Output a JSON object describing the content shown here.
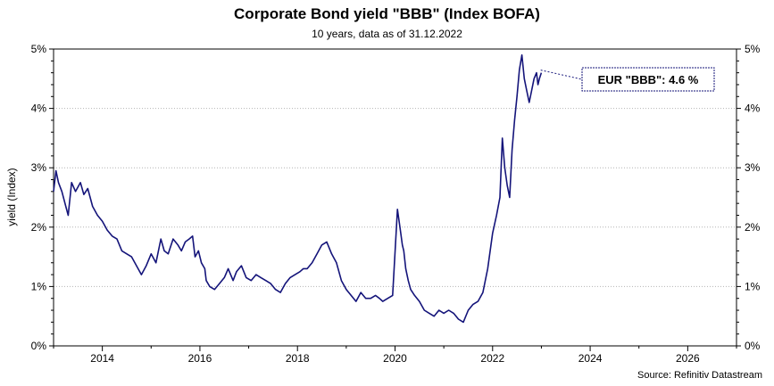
{
  "header": {
    "title": "Corporate Bond yield \"BBB\" (Index BOFA)",
    "subtitle": "10 years, data as of 31.12.2022"
  },
  "footer": {
    "source": "Source: Refinitiv Datastream"
  },
  "colors": {
    "series": "#14147a",
    "grid": "#b4b4b4",
    "axis": "#000000",
    "annotation_border": "#14147a"
  },
  "chart_data": {
    "type": "line",
    "ylabel": "yield (Index)",
    "xlabel": "",
    "xlim": [
      2013.0,
      2027.0
    ],
    "ylim": [
      0,
      5
    ],
    "x_ticks": [
      2014,
      2016,
      2018,
      2020,
      2022,
      2024,
      2026
    ],
    "y_ticks": [
      "0%",
      "1%",
      "2%",
      "3%",
      "4%",
      "5%"
    ],
    "grid": "horizontal dotted",
    "right_axis": true,
    "annotation": {
      "text": "EUR \"BBB\": 4.6 %",
      "x": 2022.95,
      "y": 4.6
    },
    "series": [
      {
        "color": "#14147a",
        "x": [
          2013.0,
          2013.05,
          2013.1,
          2013.17,
          2013.25,
          2013.3,
          2013.37,
          2013.45,
          2013.55,
          2013.62,
          2013.7,
          2013.8,
          2013.9,
          2014.0,
          2014.1,
          2014.2,
          2014.3,
          2014.4,
          2014.5,
          2014.6,
          2014.7,
          2014.8,
          2014.9,
          2015.0,
          2015.1,
          2015.2,
          2015.27,
          2015.35,
          2015.45,
          2015.55,
          2015.62,
          2015.7,
          2015.78,
          2015.85,
          2015.9,
          2015.97,
          2016.03,
          2016.1,
          2016.13,
          2016.2,
          2016.3,
          2016.4,
          2016.5,
          2016.58,
          2016.68,
          2016.75,
          2016.85,
          2016.95,
          2017.05,
          2017.15,
          2017.25,
          2017.35,
          2017.45,
          2017.55,
          2017.65,
          2017.75,
          2017.85,
          2017.95,
          2018.05,
          2018.12,
          2018.2,
          2018.3,
          2018.4,
          2018.5,
          2018.6,
          2018.7,
          2018.8,
          2018.9,
          2019.0,
          2019.1,
          2019.2,
          2019.3,
          2019.4,
          2019.5,
          2019.6,
          2019.68,
          2019.75,
          2019.85,
          2019.95,
          2020.05,
          2020.1,
          2020.15,
          2020.18,
          2020.22,
          2020.27,
          2020.32,
          2020.4,
          2020.5,
          2020.6,
          2020.7,
          2020.8,
          2020.9,
          2021.0,
          2021.1,
          2021.2,
          2021.3,
          2021.4,
          2021.5,
          2021.6,
          2021.7,
          2021.8,
          2021.9,
          2022.0,
          2022.08,
          2022.15,
          2022.2,
          2022.25,
          2022.3,
          2022.35,
          2022.4,
          2022.45,
          2022.5,
          2022.55,
          2022.6,
          2022.65,
          2022.7,
          2022.75,
          2022.8,
          2022.85,
          2022.9,
          2022.93,
          2022.96,
          2023.0
        ],
        "y": [
          2.6,
          2.95,
          2.75,
          2.6,
          2.35,
          2.2,
          2.75,
          2.6,
          2.75,
          2.55,
          2.65,
          2.35,
          2.2,
          2.1,
          1.95,
          1.85,
          1.8,
          1.6,
          1.55,
          1.5,
          1.35,
          1.2,
          1.35,
          1.55,
          1.4,
          1.8,
          1.6,
          1.55,
          1.8,
          1.7,
          1.6,
          1.75,
          1.8,
          1.85,
          1.5,
          1.6,
          1.4,
          1.3,
          1.1,
          1.0,
          0.95,
          1.05,
          1.15,
          1.3,
          1.1,
          1.25,
          1.35,
          1.15,
          1.1,
          1.2,
          1.15,
          1.1,
          1.05,
          0.95,
          0.9,
          1.05,
          1.15,
          1.2,
          1.25,
          1.3,
          1.3,
          1.4,
          1.55,
          1.7,
          1.75,
          1.55,
          1.4,
          1.1,
          0.95,
          0.85,
          0.75,
          0.9,
          0.8,
          0.8,
          0.85,
          0.8,
          0.75,
          0.8,
          0.85,
          2.3,
          2.0,
          1.7,
          1.6,
          1.3,
          1.1,
          0.95,
          0.85,
          0.75,
          0.6,
          0.55,
          0.5,
          0.6,
          0.55,
          0.6,
          0.55,
          0.45,
          0.4,
          0.6,
          0.7,
          0.75,
          0.9,
          1.3,
          1.9,
          2.2,
          2.5,
          3.5,
          3.0,
          2.7,
          2.5,
          3.3,
          3.8,
          4.2,
          4.65,
          4.9,
          4.5,
          4.3,
          4.1,
          4.3,
          4.5,
          4.6,
          4.4,
          4.5,
          4.6
        ]
      }
    ]
  }
}
